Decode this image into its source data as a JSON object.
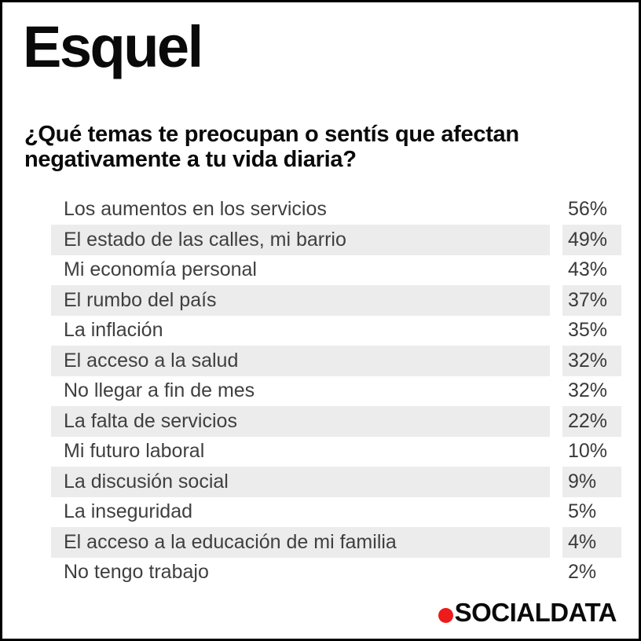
{
  "title": "Esquel",
  "question": "¿Qué temas te preocupan o sentís que afectan negativamente a tu vida diaria?",
  "chart_data": {
    "type": "table",
    "title": "¿Qué temas te preocupan o sentís que afectan negativamente a tu vida diaria?",
    "categories": [
      "Los aumentos en los servicios",
      "El estado de las calles, mi barrio",
      "Mi economía personal",
      "El rumbo del país",
      "La inflación",
      "El acceso a la salud",
      "No llegar a fin de mes",
      "La falta de servicios",
      "Mi futuro laboral",
      "La discusión social",
      "La inseguridad",
      "El acceso a la educación de mi familia",
      "No tengo trabajo"
    ],
    "values": [
      56,
      49,
      43,
      37,
      35,
      32,
      32,
      22,
      10,
      9,
      5,
      4,
      2
    ],
    "value_suffix": "%",
    "layout": "striped-rows",
    "stripe_pattern": "even-rows-gray"
  },
  "logo": {
    "text": "SOCIALDATA",
    "dot": "red-dot"
  },
  "colors": {
    "background": "#ffffff",
    "border": "#000000",
    "heading_text": "#0a0a0a",
    "row_text": "#3f3f3f",
    "row_stripe": "#ececec",
    "logo_dot_red": "#ee1b1b"
  }
}
